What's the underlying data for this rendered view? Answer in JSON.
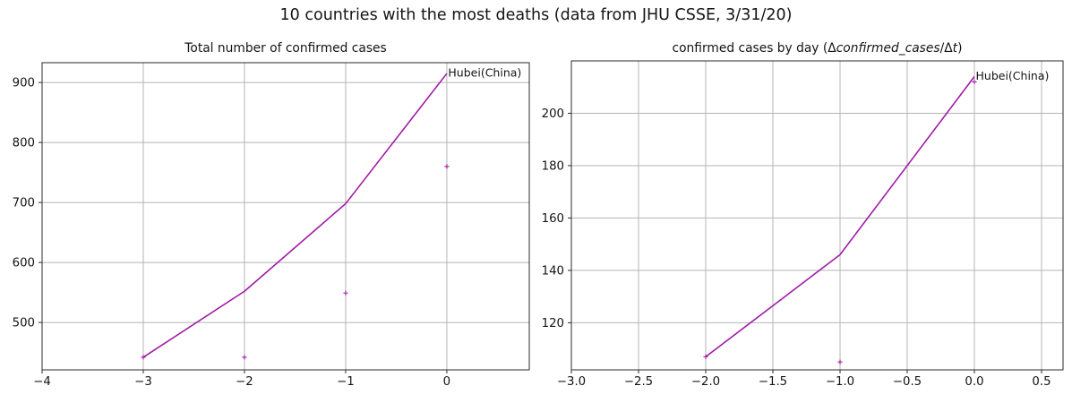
{
  "figure": {
    "suptitle": "10 countries with the most deaths (data from JHU CSSE, 3/31/20)"
  },
  "style": {
    "background": "#ffffff",
    "grid_color": "#b4b4b4",
    "spine_color": "#2b2b2b",
    "tick_color": "#2b2b2b",
    "text_color": "#151515",
    "series_color": "#a01ba5"
  },
  "chart_data": [
    {
      "type": "line",
      "title": "Total number of confirmed cases",
      "title_runs": [
        {
          "t": "Total number of confirmed cases",
          "i": false
        }
      ],
      "xlabel": "",
      "ylabel": "",
      "grid": true,
      "legend_position": "none",
      "xlim": [
        -4.0,
        0.815
      ],
      "ylim": [
        421,
        933
      ],
      "xticks": {
        "values": [
          -4,
          -3,
          -2,
          -1,
          0
        ],
        "labels": [
          "−4",
          "−3",
          "−2",
          "−1",
          "0"
        ]
      },
      "yticks": {
        "values": [
          500,
          600,
          700,
          800,
          900
        ],
        "labels": [
          "500",
          "600",
          "700",
          "800",
          "900"
        ]
      },
      "series": [
        {
          "name": "Hubei(China)",
          "end_label": "Hubei(China)",
          "x": [
            -3,
            -2,
            -1,
            0
          ],
          "y": [
            442,
            552,
            698,
            915
          ]
        }
      ],
      "markers": [
        {
          "marker": "+",
          "x": [
            -3,
            -2,
            -1,
            0
          ],
          "y": [
            442,
            442,
            549,
            760
          ]
        }
      ]
    },
    {
      "type": "line",
      "title": "confirmed cases by day (Δconfirmed_cases/Δt)",
      "title_runs": [
        {
          "t": "confirmed cases by day (",
          "i": false
        },
        {
          "t": "Δ",
          "i": false
        },
        {
          "t": "confirmed_cases",
          "i": true
        },
        {
          "t": "/Δ",
          "i": false
        },
        {
          "t": "t",
          "i": true
        },
        {
          "t": ")",
          "i": false
        }
      ],
      "xlabel": "",
      "ylabel": "",
      "grid": true,
      "legend_position": "none",
      "xlim": [
        -3.0,
        0.66
      ],
      "ylim": [
        102,
        220
      ],
      "xticks": {
        "values": [
          -3.0,
          -2.5,
          -2.0,
          -1.5,
          -1.0,
          -0.5,
          0.0,
          0.5
        ],
        "labels": [
          "−3.0",
          "−2.5",
          "−2.0",
          "−1.5",
          "−1.0",
          "−0.5",
          "0.0",
          "0.5"
        ]
      },
      "yticks": {
        "values": [
          120,
          140,
          160,
          180,
          200
        ],
        "labels": [
          "120",
          "140",
          "160",
          "180",
          "200"
        ]
      },
      "series": [
        {
          "name": "Hubei(China)",
          "end_label": "Hubei(China)",
          "x": [
            -2,
            -1,
            0
          ],
          "y": [
            107,
            146,
            214
          ]
        }
      ],
      "markers": [
        {
          "marker": "+",
          "x": [
            -2,
            -1,
            0
          ],
          "y": [
            107,
            105,
            212
          ]
        }
      ]
    }
  ]
}
